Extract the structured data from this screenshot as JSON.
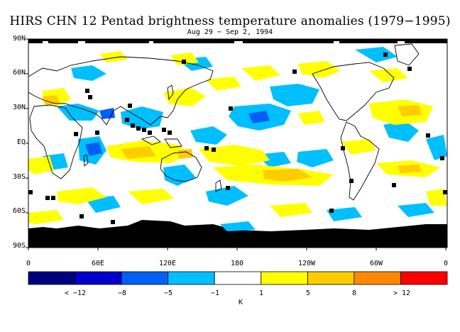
{
  "title": "HIRS CHN 12 Pentad brightness temperature anomalies (1979−1995)",
  "subtitle": "Aug 29 − Sep 2, 1994",
  "lat_labels": [
    "90N",
    "60N",
    "30N",
    "EQ",
    "30S",
    "60S",
    "90S"
  ],
  "lon_labels": [
    "0",
    "60E",
    "120E",
    "180",
    "120W",
    "60W",
    "0"
  ],
  "colorbar": {
    "colors": [
      "#00007f",
      "#0000cc",
      "#005ff5",
      "#00bfff",
      "#ffffff",
      "#ffff00",
      "#ffcc00",
      "#ff8800",
      "#ff0000"
    ],
    "labels": [
      "< −12",
      "−8",
      "−5",
      "−1",
      "1",
      "5",
      "8",
      "> 12"
    ],
    "unit": "K"
  },
  "colors": {
    "land_outline": "#000000",
    "missing": "#000000",
    "cold": "#00bfff",
    "cold2": "#005ff5",
    "warm": "#ffff00",
    "warm2": "#ffcc00"
  }
}
